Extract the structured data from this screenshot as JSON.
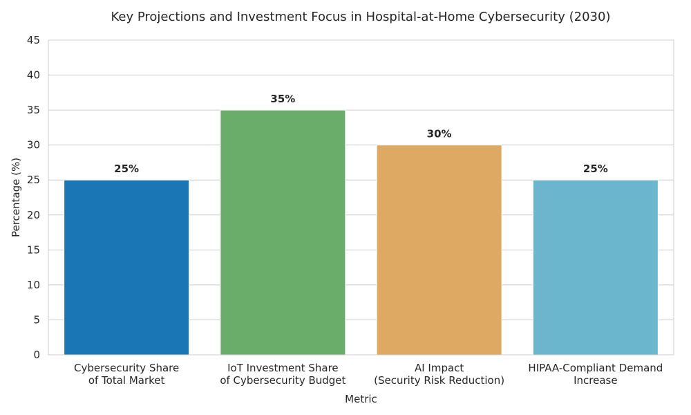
{
  "chart_data": {
    "type": "bar",
    "title": "Key Projections and Investment Focus in Hospital-at-Home Cybersecurity (2030)",
    "xlabel": "Metric",
    "ylabel": "Percentage (%)",
    "ylim": [
      0,
      45
    ],
    "yticks": [
      0,
      5,
      10,
      15,
      20,
      25,
      30,
      35,
      40,
      45
    ],
    "grid": "horizontal",
    "categories": [
      [
        "Cybersecurity Share",
        "of Total Market"
      ],
      [
        "IoT Investment Share",
        "of Cybersecurity Budget"
      ],
      [
        "AI Impact",
        "(Security Risk Reduction)"
      ],
      [
        "HIPAA-Compliant Demand",
        "Increase"
      ]
    ],
    "values": [
      25,
      35,
      30,
      25
    ],
    "value_labels": [
      "25%",
      "35%",
      "30%",
      "25%"
    ],
    "colors": [
      "#1a76b4",
      "#6aad6a",
      "#dea962",
      "#6bb6cd"
    ]
  }
}
